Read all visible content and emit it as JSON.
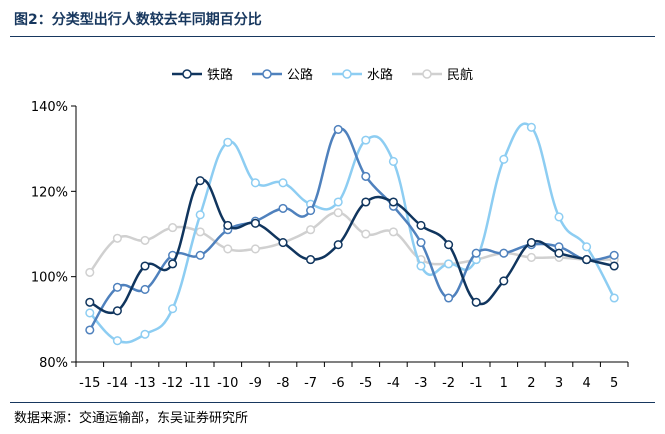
{
  "figure": {
    "title": "图2：分类型出行人数较去年同期百分比",
    "source": "数据来源：交通运输部，东吴证券研究所"
  },
  "chart_data": {
    "type": "line",
    "title": "",
    "xlabel": "",
    "ylabel": "",
    "categories": [
      "-15",
      "-14",
      "-13",
      "-12",
      "-11",
      "-10",
      "-9",
      "-8",
      "-7",
      "-6",
      "-5",
      "-4",
      "-3",
      "-2",
      "-1",
      "1",
      "2",
      "3",
      "4",
      "5"
    ],
    "ylim": [
      80,
      140
    ],
    "yticks": [
      80,
      100,
      120,
      140
    ],
    "ytick_labels": [
      "80%",
      "100%",
      "120%",
      "140%"
    ],
    "legend_position": "top-center",
    "grid": false,
    "series": [
      {
        "name": "铁路",
        "color": "#10355e",
        "values": [
          94,
          92,
          102.5,
          103,
          122.5,
          112,
          112.5,
          108,
          104,
          107.5,
          117.5,
          117.5,
          112,
          107.5,
          94,
          99,
          108,
          105.5,
          104,
          102.5
        ]
      },
      {
        "name": "公路",
        "color": "#4f81bd",
        "values": [
          87.5,
          97.5,
          97,
          105,
          105,
          111,
          113,
          116,
          115.5,
          134.5,
          123.5,
          116.5,
          108,
          95,
          105.5,
          105.5,
          107.5,
          107,
          104,
          105
        ]
      },
      {
        "name": "水路",
        "color": "#8dcdf2",
        "values": [
          91.5,
          85,
          86.5,
          92.5,
          114.5,
          131.5,
          122,
          122,
          117,
          117.5,
          132,
          127,
          102.5,
          103,
          104,
          127.5,
          135,
          114,
          107,
          95
        ]
      },
      {
        "name": "民航",
        "color": "#d0d0d0",
        "values": [
          101,
          109,
          108.5,
          111.5,
          110.5,
          106.5,
          106.5,
          108,
          111,
          115,
          110,
          110.5,
          104,
          103,
          104,
          105.5,
          104.5,
          104.5,
          104,
          104
        ]
      }
    ]
  }
}
